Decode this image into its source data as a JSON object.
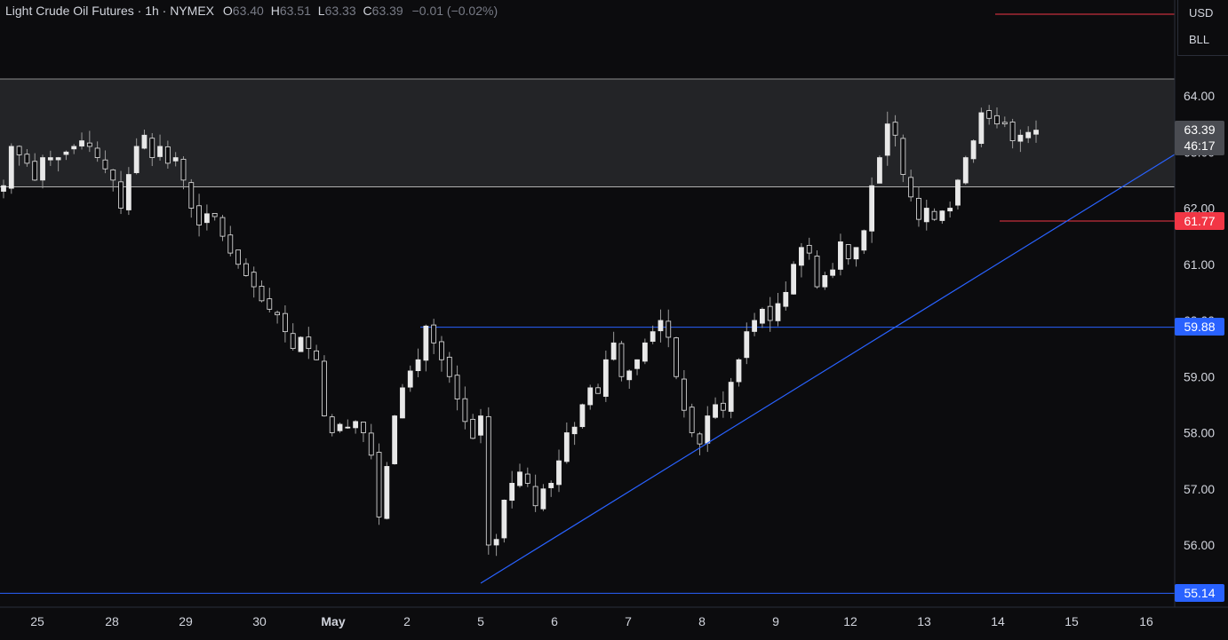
{
  "header": {
    "symbol": "Light Crude Oil Futures",
    "interval": "1h",
    "exchange": "NYMEX",
    "open_label": "O",
    "open": "63.40",
    "high_label": "H",
    "high": "63.51",
    "low_label": "L",
    "low": "63.33",
    "close_label": "C",
    "close": "63.39",
    "change": "−0.01 (−0.02%)"
  },
  "units": {
    "currency": "USD",
    "unit": "BLL"
  },
  "colors": {
    "background": "#0c0c0e",
    "candle": "#e8e8e8",
    "wick": "#9a9a9a",
    "zone": "#232427",
    "trendline": "#2962ff",
    "red_line": "#f23645",
    "current_tag": "#4a4c52"
  },
  "tags": {
    "current_price": "63.39",
    "countdown": "46:17",
    "red_level": "61.77",
    "resistance": "59.88",
    "support": "55.14"
  },
  "chart_data": {
    "type": "candlestick",
    "y_axis": {
      "range": [
        54.9,
        64.4
      ],
      "ticks": [
        "56.00",
        "57.00",
        "58.00",
        "59.00",
        "60.00",
        "61.00",
        "62.00",
        "63.00",
        "64.00"
      ],
      "tick_values": [
        56,
        57,
        58,
        59,
        60,
        61,
        62,
        63,
        64
      ]
    },
    "x_axis": {
      "labels": [
        "25",
        "28",
        "29",
        "30",
        "May",
        "2",
        "5",
        "6",
        "7",
        "8",
        "9",
        "12",
        "13",
        "14",
        "15",
        "16"
      ]
    },
    "path_points": [
      [
        0,
        62.4
      ],
      [
        1,
        63.1
      ],
      [
        3,
        62.8
      ],
      [
        4,
        62.5
      ],
      [
        5,
        62.9
      ],
      [
        7,
        62.9
      ],
      [
        8,
        63.0
      ],
      [
        10,
        63.2
      ],
      [
        11,
        63.1
      ],
      [
        13,
        62.7
      ],
      [
        14,
        62.5
      ],
      [
        15,
        62.0
      ],
      [
        16,
        62.6
      ],
      [
        17,
        63.1
      ],
      [
        18,
        63.3
      ],
      [
        19,
        62.9
      ],
      [
        20,
        63.1
      ],
      [
        21,
        62.8
      ],
      [
        22,
        62.9
      ],
      [
        23,
        62.5
      ],
      [
        24,
        62.0
      ],
      [
        25,
        61.7
      ],
      [
        26,
        61.9
      ],
      [
        27,
        61.85
      ],
      [
        28,
        61.5
      ],
      [
        29,
        61.2
      ],
      [
        30,
        61.0
      ],
      [
        31,
        60.8
      ],
      [
        32,
        60.6
      ],
      [
        33,
        60.35
      ],
      [
        34,
        60.2
      ],
      [
        35,
        60.1
      ],
      [
        36,
        59.8
      ],
      [
        37,
        59.5
      ],
      [
        38,
        59.7
      ],
      [
        39,
        59.5
      ],
      [
        40,
        59.3
      ],
      [
        41,
        58.3
      ],
      [
        42,
        58.0
      ],
      [
        43,
        58.15
      ],
      [
        44,
        58.1
      ],
      [
        45,
        58.2
      ],
      [
        46,
        58.0
      ],
      [
        47,
        57.6
      ],
      [
        48,
        56.5
      ],
      [
        49,
        57.4
      ],
      [
        50,
        58.3
      ],
      [
        51,
        58.8
      ],
      [
        52,
        59.1
      ],
      [
        53,
        59.3
      ],
      [
        54,
        59.9
      ],
      [
        55,
        59.6
      ],
      [
        56,
        59.3
      ],
      [
        57,
        59.0
      ],
      [
        58,
        58.6
      ],
      [
        59,
        58.2
      ],
      [
        60,
        57.9
      ],
      [
        61,
        58.3
      ],
      [
        61.5,
        56.6
      ],
      [
        62,
        56.0
      ],
      [
        63,
        56.1
      ],
      [
        64,
        56.8
      ],
      [
        65,
        57.1
      ],
      [
        66,
        57.3
      ],
      [
        67,
        57.1
      ],
      [
        68,
        56.7
      ],
      [
        69,
        57.0
      ],
      [
        70,
        57.1
      ],
      [
        71,
        57.5
      ],
      [
        72,
        58.0
      ],
      [
        73,
        58.1
      ],
      [
        74,
        58.5
      ],
      [
        75,
        58.8
      ],
      [
        76,
        58.7
      ],
      [
        77,
        59.3
      ],
      [
        78,
        59.6
      ],
      [
        79,
        59.0
      ],
      [
        80,
        59.1
      ],
      [
        81,
        59.3
      ],
      [
        82,
        59.6
      ],
      [
        83,
        59.8
      ],
      [
        84,
        60.0
      ],
      [
        85,
        59.7
      ],
      [
        86,
        59.0
      ],
      [
        87,
        58.4
      ],
      [
        88,
        58.0
      ],
      [
        89,
        57.8
      ],
      [
        90,
        58.3
      ],
      [
        91,
        58.5
      ],
      [
        92,
        58.4
      ],
      [
        93,
        58.9
      ],
      [
        94,
        59.3
      ],
      [
        95,
        59.8
      ],
      [
        96,
        60.0
      ],
      [
        97,
        60.2
      ],
      [
        98,
        60.0
      ],
      [
        99,
        60.3
      ],
      [
        100,
        60.5
      ],
      [
        101,
        61.0
      ],
      [
        102,
        61.3
      ],
      [
        103,
        61.2
      ],
      [
        104,
        60.6
      ],
      [
        105,
        60.8
      ],
      [
        106,
        60.9
      ],
      [
        107,
        61.4
      ],
      [
        108,
        61.1
      ],
      [
        109,
        61.3
      ],
      [
        110,
        61.6
      ],
      [
        111,
        62.4
      ],
      [
        112,
        62.9
      ],
      [
        113,
        63.5
      ],
      [
        114,
        63.3
      ],
      [
        115,
        62.6
      ],
      [
        116,
        62.2
      ],
      [
        117,
        61.8
      ],
      [
        118,
        62.0
      ],
      [
        119,
        61.8
      ],
      [
        120,
        61.95
      ],
      [
        121,
        62.0
      ],
      [
        122,
        62.5
      ],
      [
        123,
        62.9
      ],
      [
        124,
        63.2
      ],
      [
        125,
        63.7
      ],
      [
        126,
        63.6
      ],
      [
        127,
        63.5
      ],
      [
        128,
        63.5
      ],
      [
        129,
        63.2
      ],
      [
        130,
        63.3
      ],
      [
        131,
        63.35
      ],
      [
        132,
        63.39
      ]
    ],
    "zone": {
      "top": 64.3,
      "bottom": 62.38
    },
    "horizontal_lines": [
      {
        "role": "red-level",
        "value": 61.77,
        "color": "#f23645"
      },
      {
        "role": "resistance",
        "value": 59.88,
        "color": "#2962ff"
      },
      {
        "role": "support",
        "value": 55.14,
        "color": "#2962ff"
      }
    ],
    "trendline": {
      "from": [
        "May 5",
        55.3
      ],
      "to": [
        "15",
        62.4
      ]
    }
  }
}
